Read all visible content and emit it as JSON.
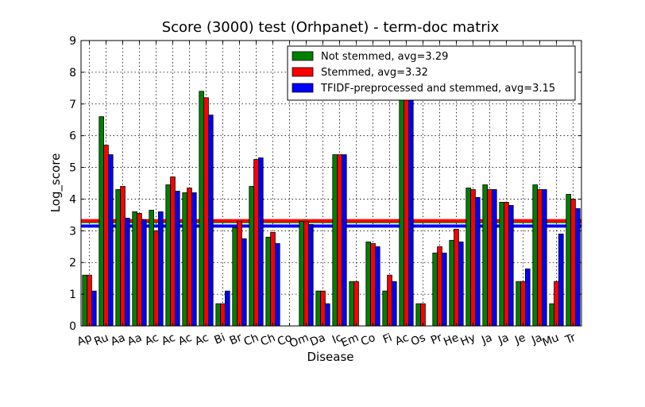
{
  "chart_data": {
    "type": "bar",
    "title": "Score (3000) test (Orhpanet) - term-doc matrix",
    "xlabel": "Disease",
    "ylabel": "Log_score",
    "ylim": [
      0,
      9
    ],
    "yticks": [
      0,
      1,
      2,
      3,
      4,
      5,
      6,
      7,
      8,
      9
    ],
    "grid": true,
    "legend_position": "top-right",
    "categories": [
      "Ap",
      "Ru",
      "Aa",
      "Aa",
      "Ac",
      "Ac",
      "Ac",
      "Ac",
      "Bi",
      "Br",
      "Ch",
      "Ch",
      "Co",
      "Om",
      "Da",
      "Ic",
      "Em",
      "Co",
      "Fi",
      "Ac",
      "Os",
      "Pr",
      "He",
      "Hy",
      "Ja",
      "Ja",
      "Je",
      "Ja",
      "Mu",
      "Tr"
    ],
    "series": [
      {
        "name": "Not stemmed, avg=3.29",
        "color": "#008000",
        "avg": 3.29,
        "values": [
          1.6,
          6.6,
          4.3,
          3.6,
          3.65,
          4.45,
          4.2,
          7.4,
          0.7,
          3.1,
          4.4,
          2.8,
          0,
          3.3,
          1.1,
          5.4,
          1.4,
          2.65,
          1.1,
          7.8,
          0.7,
          2.3,
          2.7,
          4.35,
          4.45,
          3.9,
          1.4,
          4.45,
          0.7,
          4.15
        ]
      },
      {
        "name": "Stemmed, avg=3.32",
        "color": "#ff0000",
        "avg": 3.32,
        "values": [
          1.6,
          5.7,
          4.4,
          3.55,
          3.0,
          4.7,
          4.35,
          7.2,
          0.7,
          3.3,
          5.25,
          2.95,
          0,
          3.3,
          1.1,
          5.4,
          1.4,
          2.6,
          1.6,
          7.8,
          0.7,
          2.5,
          3.05,
          4.3,
          4.3,
          3.9,
          1.4,
          4.3,
          1.4,
          4.0
        ]
      },
      {
        "name": "TFIDF-preprocessed and stemmed, avg=3.15",
        "color": "#0000ff",
        "avg": 3.15,
        "values": [
          1.1,
          5.4,
          3.4,
          3.35,
          3.6,
          4.25,
          4.2,
          6.65,
          1.1,
          2.75,
          5.3,
          2.6,
          0,
          3.2,
          0.7,
          5.4,
          0,
          2.5,
          1.4,
          7.7,
          0,
          2.3,
          2.65,
          4.05,
          4.3,
          3.8,
          1.8,
          4.3,
          2.9,
          3.7
        ]
      }
    ]
  }
}
